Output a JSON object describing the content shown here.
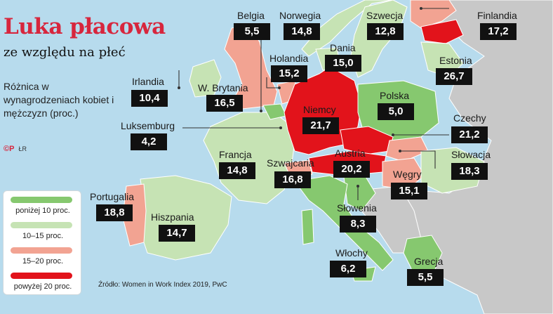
{
  "title": "Luka płacowa",
  "subtitle": "ze względu na płeć",
  "description": "Różnica w wynagrodzeniach kobiet i mężczyzn (proc.)",
  "credit": {
    "logo": "©P",
    "initials": "ŁR"
  },
  "colors": {
    "sea": "#b7dbed",
    "non_eu": "#c8c8c8",
    "below_10": "#86c86f",
    "10_15": "#c6e3b4",
    "15_20": "#f2a392",
    "above_20": "#e2131b",
    "label_box": "#111111"
  },
  "legend": [
    {
      "label": "poniżej 10 proc.",
      "color": "#86c86f"
    },
    {
      "label": "10–15 proc.",
      "color": "#c6e3b4"
    },
    {
      "label": "15–20 proc.",
      "color": "#f2a392"
    },
    {
      "label": "powyżej 20 proc.",
      "color": "#e2131b"
    }
  ],
  "countries": {
    "belgia": {
      "name": "Belgia",
      "value": "5,5"
    },
    "norwegia": {
      "name": "Norwegia",
      "value": "14,8"
    },
    "szwecja": {
      "name": "Szwecja",
      "value": "12,8"
    },
    "finlandia": {
      "name": "Finlandia",
      "value": "17,2"
    },
    "dania": {
      "name": "Dania",
      "value": "15,0"
    },
    "estonia": {
      "name": "Estonia",
      "value": "26,7"
    },
    "holandia": {
      "name": "Holandia",
      "value": "15,2"
    },
    "irlandia": {
      "name": "Irlandia",
      "value": "10,4"
    },
    "wbrytania": {
      "name": "W. Brytania",
      "value": "16,5"
    },
    "polska": {
      "name": "Polska",
      "value": "5,0"
    },
    "niemcy": {
      "name": "Niemcy",
      "value": "21,7"
    },
    "czechy": {
      "name": "Czechy",
      "value": "21,2"
    },
    "luksemburg": {
      "name": "Luksemburg",
      "value": "4,2"
    },
    "francja": {
      "name": "Francja",
      "value": "14,8"
    },
    "szwajcaria": {
      "name": "Szwajcaria",
      "value": "16,8"
    },
    "austria": {
      "name": "Austria",
      "value": "20,2"
    },
    "slowacja": {
      "name": "Słowacja",
      "value": "18,3"
    },
    "wegry": {
      "name": "Węgry",
      "value": "15,1"
    },
    "portugalia": {
      "name": "Portugalia",
      "value": "18,8"
    },
    "hiszpania": {
      "name": "Hiszpania",
      "value": "14,7"
    },
    "slowenia": {
      "name": "Słowenia",
      "value": "8,3"
    },
    "wlochy": {
      "name": "Włochy",
      "value": "6,2"
    },
    "grecja": {
      "name": "Grecja",
      "value": "5,5"
    }
  },
  "source": "Źródło: Women in Work Index 2019, PwC"
}
